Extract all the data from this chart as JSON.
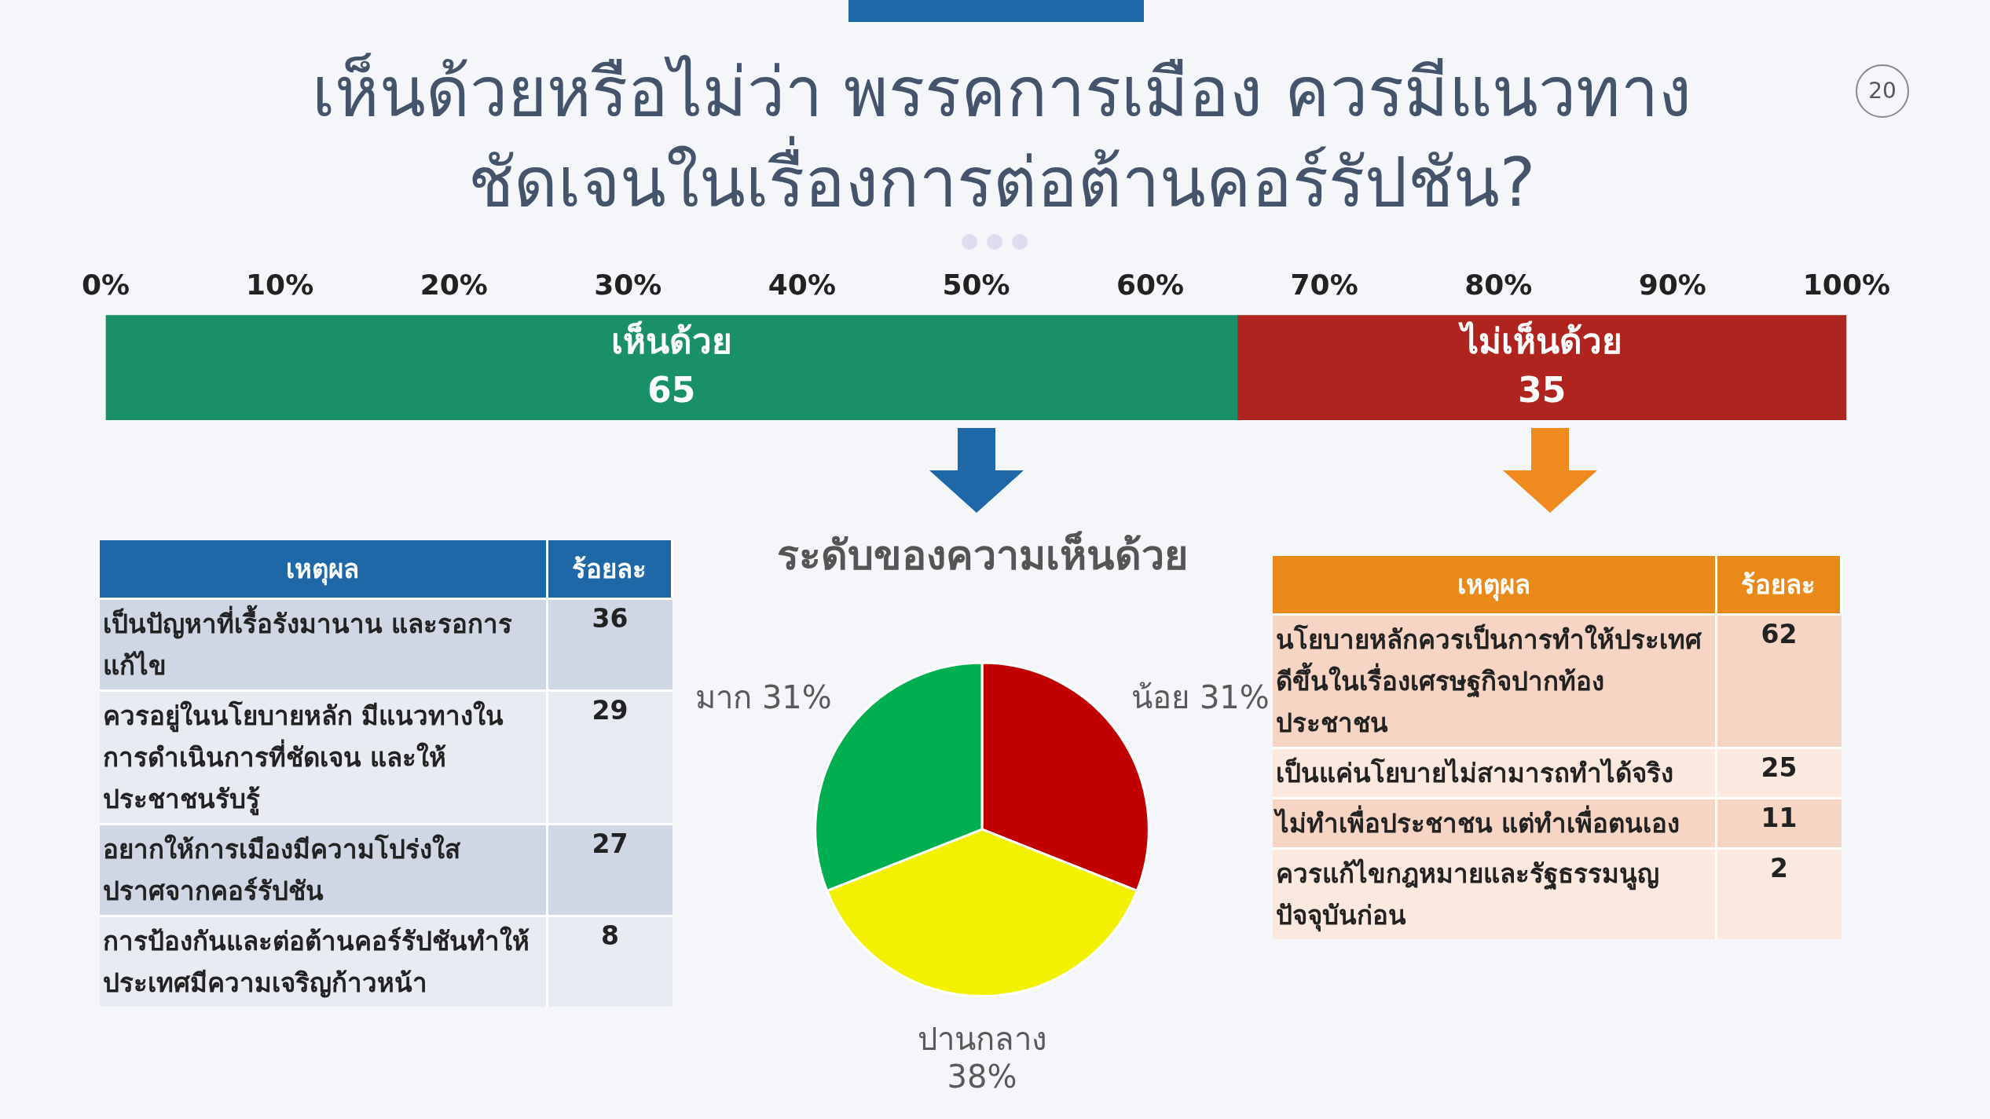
{
  "chart_data": [
    {
      "type": "bar",
      "orientation": "horizontal",
      "stacked": true,
      "title": "เห็นด้วยหรือไม่ว่า พรรคการเมือง ควรมีแนวทางชัดเจนในเรื่องการต่อต้านคอร์รัปชัน?",
      "categories": [
        null
      ],
      "series": [
        {
          "name": "เห็นด้วย",
          "color": "#1a9068",
          "values": [
            65
          ]
        },
        {
          "name": "ไม่เห็นด้วย",
          "color": "#b02420",
          "values": [
            35
          ]
        }
      ],
      "xlim": [
        0,
        100
      ],
      "xticks": [
        {
          "value": 0,
          "label": "0%"
        },
        {
          "value": 10,
          "label": "10%"
        },
        {
          "value": 20,
          "label": "20%"
        },
        {
          "value": 30,
          "label": "30%"
        },
        {
          "value": 40,
          "label": "40%"
        },
        {
          "value": 50,
          "label": "50%"
        },
        {
          "value": 60,
          "label": "60%"
        },
        {
          "value": 70,
          "label": "70%"
        },
        {
          "value": 80,
          "label": "80%"
        },
        {
          "value": 90,
          "label": "90%"
        },
        {
          "value": 100,
          "label": "100%"
        }
      ],
      "data_labels": true,
      "legend": false,
      "annotations": [
        "20"
      ]
    },
    {
      "type": "pie",
      "title": "ระดับของความเห็นด้วย",
      "categories": [
        "น้อย",
        "ปานกลาง",
        "มาก"
      ],
      "values": [
        31,
        38,
        31
      ],
      "colors": [
        "#c00000",
        "#f2f200",
        "#00b050"
      ],
      "value_labels": [
        "31%",
        "38%",
        "31%"
      ],
      "legend": false
    },
    {
      "type": "other",
      "xlabel": "เหตุผล",
      "ylabel": "ร้อยละ",
      "categories": [
        "เป็นปัญหาที่เรื้อรังมานาน และรอการแก้ไข",
        "ควรอยู่ในนโยบายหลัก มีแนวทางในการดำเนินการที่ชัดเจน และให้ประชาชนรับรู้",
        "อยากให้การเมืองมีความโปร่งใสปราศจากคอร์รัปชัน",
        "การป้องกันและต่อต้านคอร์รัปชันทำให้ประเทศมีความเจริญก้าวหน้า"
      ],
      "values": [
        36,
        29,
        27,
        8
      ],
      "data_labels": true
    },
    {
      "type": "other",
      "xlabel": "เหตุผล",
      "ylabel": "ร้อยละ",
      "categories": [
        "นโยบายหลักควรเป็นการทำให้ประเทศดีขึ้นในเรื่องเศรษฐกิจปากท้องประชาชน",
        "เป็นแค่นโยบายไม่สามารถทำได้จริง",
        "ไม่ทำเพื่อประชาชน แต่ทำเพื่อตนเอง",
        "ควรแก้ไขกฎหมายและรัฐธรรมนูญปัจจุบันก่อน"
      ],
      "values": [
        62,
        25,
        11,
        2
      ],
      "data_labels": true
    }
  ]
}
